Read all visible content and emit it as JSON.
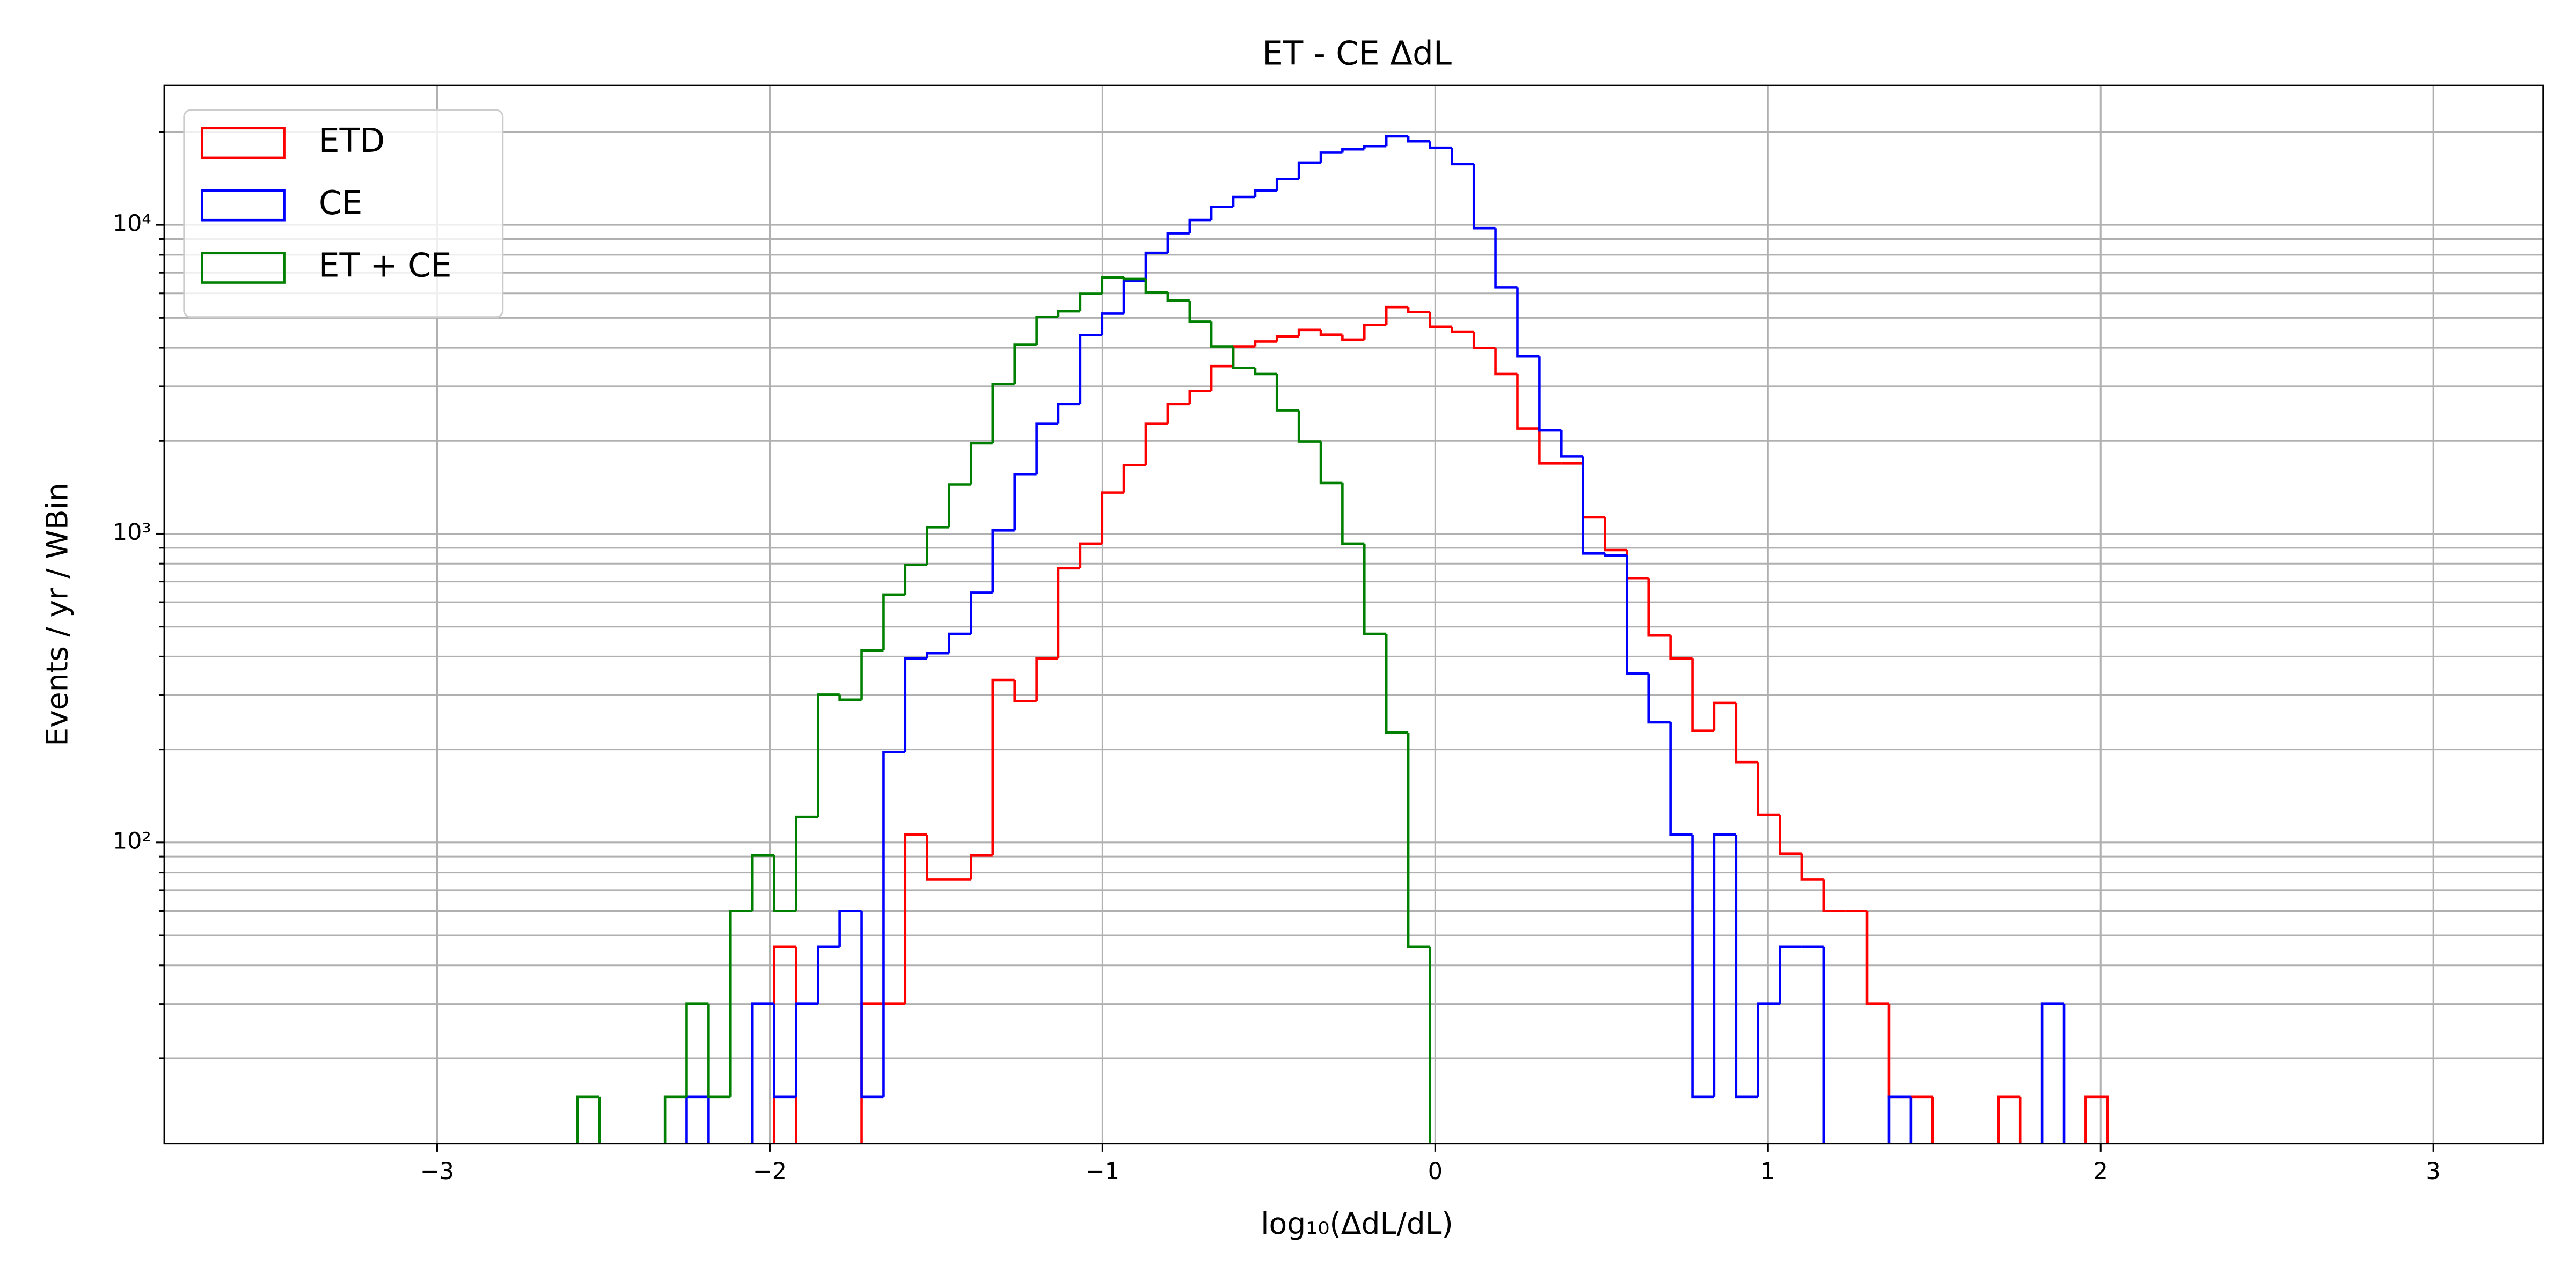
{
  "chart_data": {
    "type": "histogram",
    "title": "ET - CE ΔdL",
    "x_label": "log₁₀(ΔdL/dL)",
    "y_label": "Events / yr / WBin",
    "log_y": true,
    "grid": true,
    "legend": "upper left",
    "xlim": [
      -3.82,
      3.33
    ],
    "ylim": [
      10.6,
      28300
    ],
    "xticks": [
      {
        "value": -3,
        "label": "−3"
      },
      {
        "value": -2,
        "label": "−2"
      },
      {
        "value": -1,
        "label": "−1"
      },
      0,
      1,
      2,
      3
    ],
    "yticks": [
      {
        "value": 100,
        "label": "10²"
      },
      {
        "value": 1000,
        "label": "10³"
      },
      {
        "value": 10000,
        "label": "10⁴"
      }
    ],
    "yminorticks": [
      20,
      30,
      40,
      50,
      60,
      70,
      80,
      90,
      200,
      300,
      400,
      500,
      600,
      700,
      800,
      900,
      2000,
      3000,
      4000,
      5000,
      6000,
      7000,
      8000,
      9000,
      20000
    ],
    "bins": [
      -2.578,
      -2.512,
      -2.447,
      -2.381,
      -2.315,
      -2.25,
      -2.184,
      -2.118,
      -2.052,
      -1.987,
      -1.921,
      -1.855,
      -1.79,
      -1.724,
      -1.658,
      -1.593,
      -1.527,
      -1.461,
      -1.395,
      -1.33,
      -1.264,
      -1.198,
      -1.133,
      -1.067,
      -1.001,
      -0.936,
      -0.87,
      -0.804,
      -0.738,
      -0.673,
      -0.607,
      -0.541,
      -0.476,
      -0.41,
      -0.344,
      -0.279,
      -0.213,
      -0.147,
      -0.081,
      -0.016,
      0.05,
      0.116,
      0.181,
      0.247,
      0.313,
      0.379,
      0.444,
      0.51,
      0.576,
      0.641,
      0.707,
      0.773,
      0.838,
      0.904,
      0.97,
      1.036,
      1.101,
      1.167,
      1.233,
      1.298,
      1.364,
      1.43,
      1.495,
      1.561,
      1.627,
      1.693,
      1.758,
      1.824,
      1.89,
      1.955,
      2.021
    ],
    "series": [
      {
        "name": "ETD",
        "color": "#ff0000",
        "values": [
          0,
          0,
          0,
          0,
          0,
          0,
          0,
          0,
          0,
          46,
          0,
          0,
          0,
          30,
          30,
          106,
          76,
          76,
          91,
          336,
          287,
          394,
          773,
          929,
          1360,
          1670,
          2270,
          2630,
          2900,
          3490,
          4040,
          4190,
          4350,
          4570,
          4410,
          4250,
          4740,
          5420,
          5220,
          4680,
          4510,
          3990,
          3290,
          2190,
          1690,
          1690,
          1130,
          885,
          718,
          468,
          394,
          230,
          283,
          182,
          123,
          92,
          76,
          60,
          60,
          30,
          15,
          15,
          0,
          0,
          0,
          15,
          0,
          0,
          0,
          15
        ]
      },
      {
        "name": "CE",
        "color": "#0000ff",
        "values": [
          0,
          0,
          0,
          0,
          0,
          15,
          0,
          0,
          30,
          15,
          30,
          46,
          60,
          15,
          196,
          394,
          410,
          474,
          644,
          1025,
          1555,
          2270,
          2630,
          4400,
          5160,
          6590,
          8120,
          9400,
          10370,
          11450,
          12320,
          12930,
          14100,
          15920,
          17140,
          17580,
          18000,
          19370,
          18660,
          17790,
          15740,
          9760,
          6280,
          3750,
          2160,
          1780,
          863,
          850,
          353,
          245,
          106,
          15,
          106,
          15,
          30,
          46,
          46,
          0,
          0,
          0,
          15,
          0,
          0,
          0,
          0,
          0,
          0,
          30,
          0,
          0
        ]
      },
      {
        "name": "ET + CE",
        "color": "#008000",
        "values": [
          15,
          0,
          0,
          0,
          15,
          30,
          15,
          60,
          91,
          60,
          121,
          301,
          290,
          419,
          635,
          792,
          1050,
          1445,
          1963,
          3050,
          4090,
          5040,
          5250,
          5980,
          6760,
          6680,
          6050,
          5690,
          4860,
          4040,
          3440,
          3290,
          2510,
          1990,
          1460,
          929,
          474,
          227,
          46,
          0,
          0,
          0,
          0,
          0,
          0,
          0,
          0,
          0,
          0,
          0,
          0,
          0,
          0,
          0,
          0,
          0,
          0,
          0,
          0,
          0,
          0,
          0,
          0,
          0,
          0,
          0,
          0,
          0,
          0,
          0
        ]
      }
    ]
  }
}
